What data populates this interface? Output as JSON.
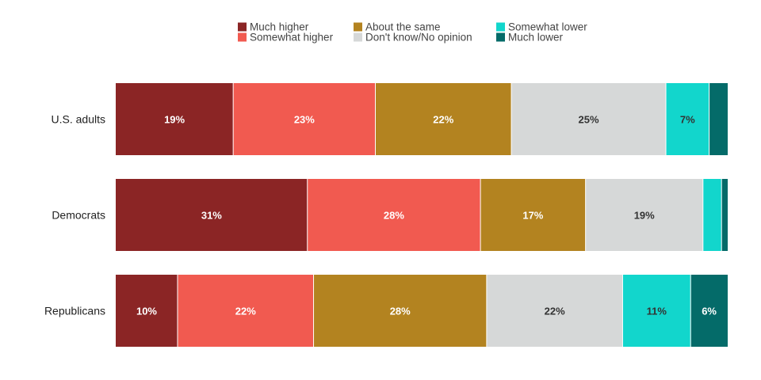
{
  "chart_data": {
    "type": "bar",
    "orientation": "horizontal",
    "stacked": true,
    "normalized_percent": true,
    "title": "",
    "categories": [
      "U.S. adults",
      "Democrats",
      "Republicans"
    ],
    "series": [
      {
        "name": "Much higher",
        "color": "#8B2525",
        "label_color": "#ffffff",
        "values": [
          19,
          31,
          10
        ]
      },
      {
        "name": "Somewhat higher",
        "color": "#F15A50",
        "label_color": "#ffffff",
        "values": [
          23,
          28,
          22
        ]
      },
      {
        "name": "About the same",
        "color": "#B38320",
        "label_color": "#ffffff",
        "values": [
          22,
          17,
          28
        ]
      },
      {
        "name": "Don't know/No opinion",
        "color": "#D6D8D8",
        "label_color": "#333333",
        "values": [
          25,
          19,
          22
        ]
      },
      {
        "name": "Somewhat lower",
        "color": "#12D6CC",
        "label_color": "#333333",
        "values": [
          7,
          3,
          11
        ]
      },
      {
        "name": "Much lower",
        "color": "#046B69",
        "label_color": "#ffffff",
        "values": [
          3,
          1,
          6
        ]
      }
    ],
    "data_labels": [
      [
        "19%",
        "23%",
        "22%",
        "25%",
        "7%",
        ""
      ],
      [
        "31%",
        "28%",
        "17%",
        "19%",
        "",
        ""
      ],
      [
        "10%",
        "22%",
        "28%",
        "22%",
        "11%",
        "6%"
      ]
    ],
    "legend": {
      "position": "top",
      "columns": [
        [
          "Much higher",
          "Somewhat higher"
        ],
        [
          "About the same",
          "Don't know/No opinion"
        ],
        [
          "Somewhat lower",
          "Much lower"
        ]
      ]
    },
    "grid": false,
    "xlim": [
      0,
      100
    ]
  }
}
